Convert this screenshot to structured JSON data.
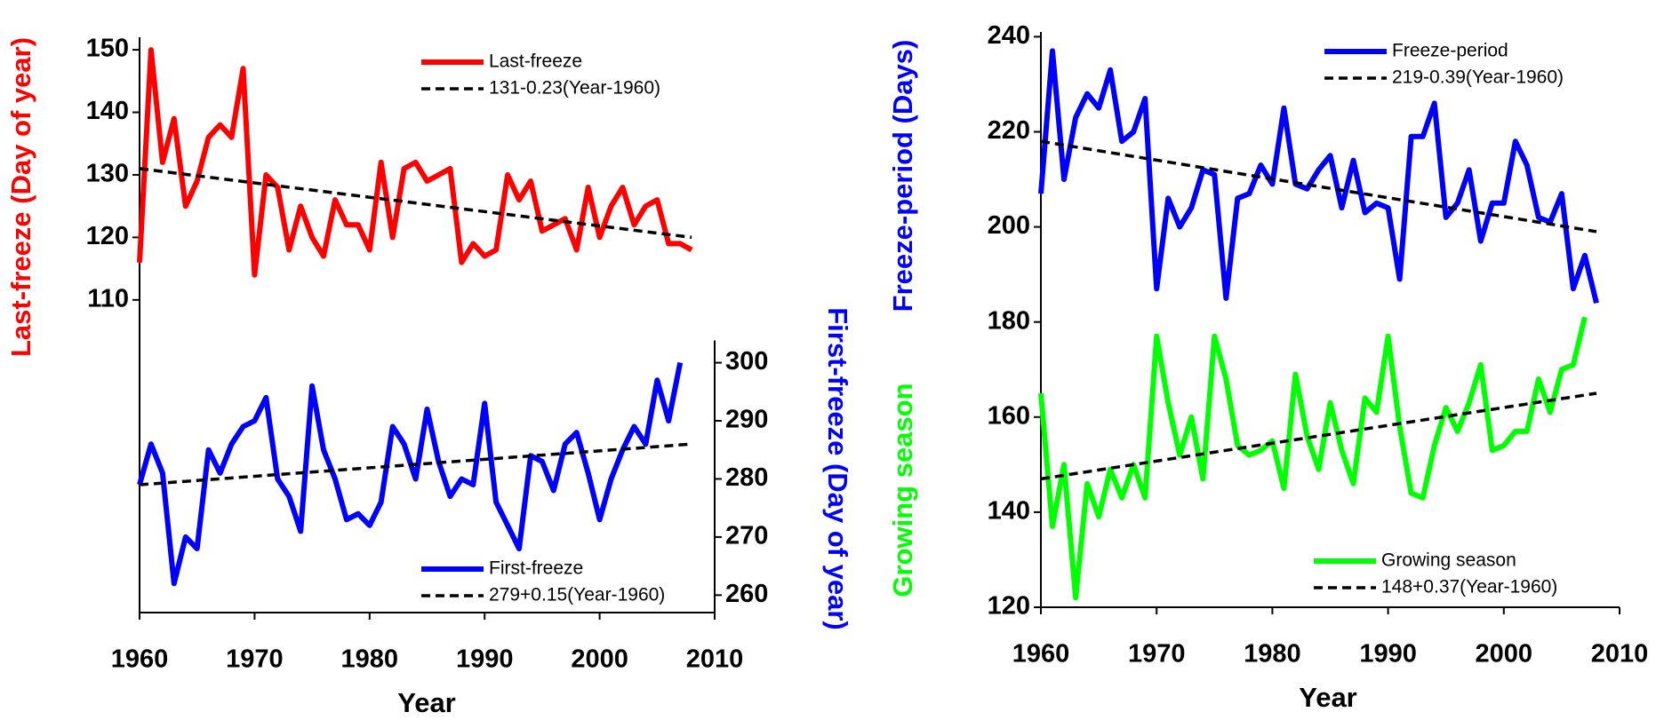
{
  "chart_data": [
    {
      "type": "line",
      "x": [
        1960,
        1961,
        1962,
        1963,
        1964,
        1965,
        1966,
        1967,
        1968,
        1969,
        1970,
        1971,
        1972,
        1973,
        1974,
        1975,
        1976,
        1977,
        1978,
        1979,
        1980,
        1981,
        1982,
        1983,
        1984,
        1985,
        1986,
        1987,
        1988,
        1989,
        1990,
        1991,
        1992,
        1993,
        1994,
        1995,
        1996,
        1997,
        1998,
        1999,
        2000,
        2001,
        2002,
        2003,
        2004,
        2005,
        2006,
        2007,
        2008
      ],
      "xlabel": "Year",
      "ylabel": "Last-freeze (Day of year)",
      "ylabel_color": "#ff0000",
      "y2label": "First-freeze (Day of year)",
      "y2label_color": "#0000ff",
      "xlim": [
        1960,
        2010
      ],
      "xticks": [
        1960,
        1970,
        1980,
        1990,
        2000,
        2010
      ],
      "ylim": [
        60,
        152
      ],
      "yticks": [
        110,
        120,
        130,
        140,
        150
      ],
      "y2lim": [
        257,
        356
      ],
      "y2ticks": [
        260,
        270,
        280,
        290,
        300
      ],
      "series": [
        {
          "name": "Last-freeze",
          "color": "#ff0000",
          "legend": "top",
          "values": [
            116,
            150,
            132,
            139,
            125,
            129,
            136,
            138,
            136,
            147,
            114,
            130,
            128,
            118,
            125,
            120,
            117,
            126,
            122,
            122,
            118,
            132,
            120,
            131,
            132,
            129,
            130,
            131,
            116,
            119,
            117,
            118,
            130,
            126,
            129,
            121,
            122,
            123,
            118,
            128,
            120,
            125,
            128,
            122,
            125,
            126,
            119,
            119,
            118
          ]
        },
        {
          "name": "131-0.23(Year-1960)",
          "color": "#000000",
          "dash": true,
          "legend": "top",
          "x": [
            1960,
            2008
          ],
          "values": [
            131,
            120
          ]
        },
        {
          "name": "First-freeze",
          "color": "#0000ff",
          "axis": "y2",
          "legend": "bottom",
          "values": [
            279,
            286,
            281,
            262,
            270,
            268,
            285,
            281,
            286,
            289,
            290,
            294,
            280,
            277,
            271,
            296,
            285,
            280,
            273,
            274,
            272,
            276,
            289,
            286,
            280,
            292,
            283,
            277,
            280,
            279,
            293,
            276,
            272,
            268,
            284,
            283,
            278,
            286,
            288,
            281,
            273,
            280,
            285,
            289,
            286,
            297,
            290,
            300,
            null
          ]
        },
        {
          "name": "279+0.15(Year-1960)",
          "color": "#000000",
          "dash": true,
          "axis": "y2",
          "legend": "bottom",
          "x": [
            1960,
            2008
          ],
          "values": [
            279,
            286
          ]
        }
      ]
    },
    {
      "type": "line",
      "x": [
        1960,
        1961,
        1962,
        1963,
        1964,
        1965,
        1966,
        1967,
        1968,
        1969,
        1970,
        1971,
        1972,
        1973,
        1974,
        1975,
        1976,
        1977,
        1978,
        1979,
        1980,
        1981,
        1982,
        1983,
        1984,
        1985,
        1986,
        1987,
        1988,
        1989,
        1990,
        1991,
        1992,
        1993,
        1994,
        1995,
        1996,
        1997,
        1998,
        1999,
        2000,
        2001,
        2002,
        2003,
        2004,
        2005,
        2006,
        2007,
        2008
      ],
      "xlabel": "Year",
      "ylabel_parts": [
        {
          "text": "Growing season",
          "color": "#00ff00"
        },
        {
          "text": "Freeze-period  (Days)",
          "color": "#0000ff"
        }
      ],
      "xlim": [
        1960,
        2010
      ],
      "xticks": [
        1960,
        1970,
        1980,
        1990,
        2000,
        2010
      ],
      "ylim": [
        120,
        241
      ],
      "yticks": [
        120,
        140,
        160,
        180,
        200,
        220,
        240
      ],
      "series": [
        {
          "name": "Freeze-period",
          "color": "#0000ff",
          "legend": "top",
          "values": [
            207,
            237,
            210,
            223,
            228,
            225,
            233,
            218,
            220,
            227,
            187,
            206,
            200,
            204,
            212,
            211,
            185,
            206,
            207,
            213,
            209,
            225,
            209,
            208,
            212,
            215,
            204,
            214,
            203,
            205,
            204,
            189,
            219,
            219,
            226,
            202,
            205,
            212,
            197,
            205,
            205,
            218,
            213,
            202,
            201,
            207,
            187,
            194,
            184
          ]
        },
        {
          "name": "219-0.39(Year-1960)",
          "color": "#000000",
          "dash": true,
          "legend": "top",
          "x": [
            1960,
            2008
          ],
          "values": [
            218,
            199
          ]
        },
        {
          "name": "Growing season",
          "color": "#00ff00",
          "legend": "bottom",
          "values": [
            165,
            137,
            150,
            122,
            146,
            139,
            149,
            143,
            150,
            143,
            177,
            163,
            152,
            160,
            147,
            177,
            168,
            154,
            152,
            153,
            155,
            145,
            169,
            156,
            149,
            163,
            153,
            146,
            164,
            161,
            177,
            158,
            144,
            143,
            154,
            162,
            157,
            163,
            171,
            153,
            154,
            157,
            157,
            168,
            161,
            170,
            171,
            181,
            null
          ]
        },
        {
          "name": "148+0.37(Year-1960)",
          "color": "#000000",
          "dash": true,
          "legend": "bottom",
          "x": [
            1960,
            2008
          ],
          "values": [
            147,
            165
          ]
        }
      ]
    }
  ]
}
